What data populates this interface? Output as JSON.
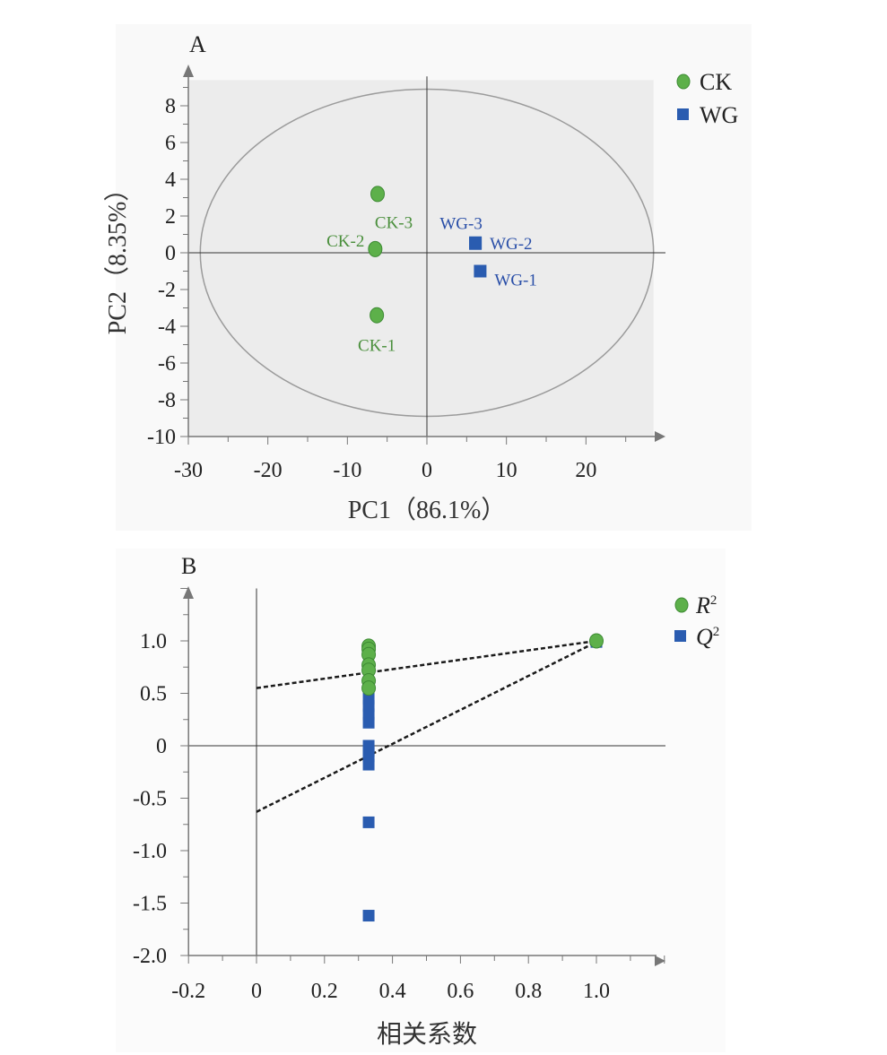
{
  "chart_data": [
    {
      "panel": "A",
      "type": "scatter",
      "xlabel": "PC1（86.1%）",
      "ylabel": "PC2（8.35%）",
      "xlim": [
        -30,
        30
      ],
      "ylim": [
        -10,
        10
      ],
      "xticks": [
        -30,
        -20,
        -10,
        0,
        10,
        20
      ],
      "xtick_labels": [
        "-30",
        "-20",
        "-10",
        "0",
        "10",
        "20"
      ],
      "yticks": [
        -10,
        -8,
        -6,
        -4,
        -2,
        0,
        2,
        4,
        6,
        8
      ],
      "ytick_labels": [
        "-10",
        "-8",
        "-6",
        "-4",
        "-2",
        "0",
        "2",
        "4",
        "6",
        "8"
      ],
      "ellipse": {
        "rx": 28.5,
        "ry": 8.9
      },
      "legend_position": "top-right",
      "series": [
        {
          "name": "CK",
          "marker": "circle",
          "color": "#5db04a",
          "label_color": "#4a8f3c",
          "points": [
            {
              "label": "CK-1",
              "x": -6.3,
              "y": -3.4
            },
            {
              "label": "CK-2",
              "x": -6.5,
              "y": 0.2
            },
            {
              "label": "CK-3",
              "x": -6.2,
              "y": 3.2
            }
          ]
        },
        {
          "name": "WG",
          "marker": "square",
          "color": "#2a5cb0",
          "label_color": "#2a4fa8",
          "points": [
            {
              "label": "WG-1",
              "x": 6.7,
              "y": -1.0
            },
            {
              "label": "WG-2",
              "x": 6.1,
              "y": 0.5
            },
            {
              "label": "WG-3",
              "x": 6.1,
              "y": 0.55
            }
          ]
        }
      ]
    },
    {
      "panel": "B",
      "type": "scatter",
      "xlabel": "相关系数",
      "ylabel": "",
      "xlim": [
        -0.2,
        1.2
      ],
      "ylim": [
        -2.0,
        1.5
      ],
      "xticks": [
        -0.2,
        0,
        0.2,
        0.4,
        0.6,
        0.8,
        1.0
      ],
      "xtick_labels": [
        "-0.2",
        "0",
        "0.2",
        "0.4",
        "0.6",
        "0.8",
        "1.0"
      ],
      "yticks": [
        -2.0,
        -1.5,
        -1.0,
        -0.5,
        0,
        0.5,
        1.0
      ],
      "ytick_labels": [
        "-2.0",
        "-1.5",
        "-1.0",
        "-0.5",
        "0",
        "0.5",
        "1.0"
      ],
      "legend_position": "top-right",
      "series": [
        {
          "name": "R²",
          "marker": "circle",
          "color": "#5db04a",
          "x": [
            0.33,
            0.33,
            0.33,
            0.33,
            0.33,
            0.33,
            0.33,
            1.0
          ],
          "y": [
            0.95,
            0.92,
            0.87,
            0.77,
            0.72,
            0.62,
            0.55,
            1.0
          ]
        },
        {
          "name": "Q²",
          "marker": "square",
          "color": "#2a5cb0",
          "x": [
            0.33,
            0.33,
            0.33,
            0.33,
            0.33,
            0.33,
            0.33,
            0.33,
            0.33,
            0.33,
            1.0
          ],
          "y": [
            0.45,
            0.38,
            0.3,
            0.22,
            -0.05,
            -0.1,
            -0.18,
            -0.73,
            -1.62,
            0.0,
            0.99
          ]
        }
      ],
      "regression_lines": [
        {
          "name": "R²",
          "x": [
            0,
            1.0
          ],
          "y": [
            0.55,
            1.0
          ]
        },
        {
          "name": "Q²",
          "x": [
            0,
            1.0
          ],
          "y": [
            -0.63,
            0.99
          ]
        }
      ]
    }
  ],
  "panel_labels": {
    "a": "A",
    "b": "B"
  },
  "legend_a": {
    "item1": "CK",
    "item2": "WG"
  },
  "legend_b": {
    "item1_base": "R",
    "item1_sup": "2",
    "item2_base": "Q",
    "item2_sup": "2"
  }
}
